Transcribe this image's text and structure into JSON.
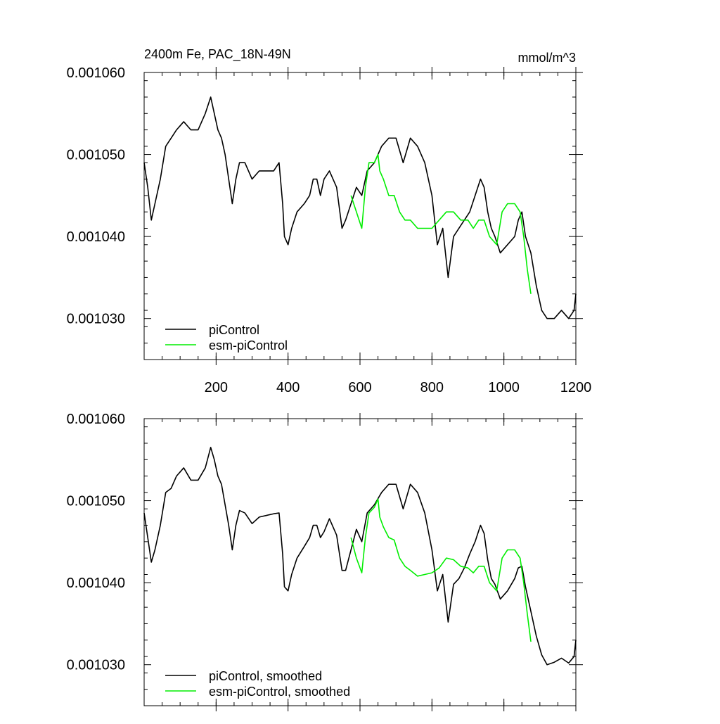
{
  "chart_data": [
    {
      "type": "line",
      "title": "2400m Fe, PAC_18N-49N",
      "units": "mmol/m^3",
      "xlim": [
        0,
        1200
      ],
      "ylim": [
        0.001025,
        0.00106
      ],
      "xticks": [
        200,
        400,
        600,
        800,
        1000,
        1200
      ],
      "xtick_labels": [
        "200",
        "400",
        "600",
        "800",
        "1000",
        "1200"
      ],
      "yticks": [
        0.00103,
        0.00104,
        0.00105,
        0.00106
      ],
      "ytick_labels": [
        "0.001030",
        "0.001040",
        "0.001050",
        "0.001060"
      ],
      "legend_position": "bottom-left",
      "series": [
        {
          "name": "piControl",
          "color": "#000000",
          "x": [
            0,
            10,
            20,
            30,
            45,
            60,
            75,
            90,
            110,
            130,
            150,
            170,
            185,
            195,
            205,
            215,
            225,
            235,
            245,
            255,
            265,
            280,
            300,
            320,
            340,
            360,
            375,
            385,
            390,
            400,
            410,
            425,
            445,
            460,
            470,
            480,
            490,
            500,
            515,
            535,
            550,
            560,
            575,
            590,
            605,
            620,
            640,
            660,
            680,
            700,
            720,
            740,
            760,
            780,
            800,
            815,
            830,
            845,
            860,
            875,
            890,
            905,
            920,
            935,
            945,
            955,
            965,
            975,
            990,
            1010,
            1030,
            1040,
            1050,
            1060,
            1075,
            1090,
            1105,
            1120,
            1140,
            1160,
            1180,
            1195,
            1200
          ],
          "values": [
            0.001049,
            0.001046,
            0.001042,
            0.001044,
            0.001047,
            0.001051,
            0.001052,
            0.001053,
            0.001054,
            0.001053,
            0.001053,
            0.001055,
            0.001057,
            0.001055,
            0.001053,
            0.001052,
            0.00105,
            0.001047,
            0.001044,
            0.001047,
            0.001049,
            0.001049,
            0.001047,
            0.001048,
            0.001048,
            0.001048,
            0.001049,
            0.001044,
            0.00104,
            0.001039,
            0.001041,
            0.001043,
            0.001044,
            0.001045,
            0.001047,
            0.001047,
            0.001045,
            0.001047,
            0.001048,
            0.001046,
            0.001041,
            0.001042,
            0.001044,
            0.001046,
            0.001045,
            0.001048,
            0.001049,
            0.001051,
            0.001052,
            0.001052,
            0.001049,
            0.001052,
            0.001051,
            0.001049,
            0.001045,
            0.001039,
            0.001041,
            0.001035,
            0.00104,
            0.001041,
            0.001042,
            0.001043,
            0.001045,
            0.001047,
            0.001046,
            0.001043,
            0.001041,
            0.00104,
            0.001038,
            0.001039,
            0.00104,
            0.001042,
            0.001043,
            0.00104,
            0.001038,
            0.001034,
            0.001031,
            0.00103,
            0.00103,
            0.001031,
            0.00103,
            0.001031,
            0.001033
          ]
        },
        {
          "name": "esm-piControl",
          "color": "#00ee00",
          "x": [
            575,
            590,
            605,
            615,
            625,
            640,
            650,
            655,
            665,
            680,
            695,
            710,
            725,
            740,
            760,
            780,
            800,
            820,
            840,
            860,
            880,
            900,
            915,
            930,
            945,
            960,
            980,
            995,
            1010,
            1030,
            1045,
            1055,
            1065,
            1075
          ],
          "values": [
            0.001045,
            0.001043,
            0.001041,
            0.001046,
            0.001049,
            0.001049,
            0.00105,
            0.001048,
            0.001047,
            0.001045,
            0.001045,
            0.001043,
            0.001042,
            0.001042,
            0.001041,
            0.001041,
            0.001041,
            0.001042,
            0.001043,
            0.001043,
            0.001042,
            0.001042,
            0.001041,
            0.001042,
            0.001042,
            0.00104,
            0.001039,
            0.001043,
            0.001044,
            0.001044,
            0.001043,
            0.00104,
            0.001036,
            0.001033
          ]
        }
      ]
    },
    {
      "type": "line",
      "title": "",
      "units": "",
      "xlim": [
        0,
        1200
      ],
      "ylim": [
        0.001025,
        0.00106
      ],
      "xticks": [
        200,
        400,
        600,
        800,
        1000,
        1200
      ],
      "xtick_labels": [
        "",
        "",
        "",
        "",
        "",
        ""
      ],
      "yticks": [
        0.00103,
        0.00104,
        0.00105,
        0.00106
      ],
      "ytick_labels": [
        "0.001030",
        "0.001040",
        "0.001050",
        "0.001060"
      ],
      "legend_position": "bottom-left",
      "series": [
        {
          "name": "piControl, smoothed",
          "color": "#000000",
          "x": [
            0,
            10,
            20,
            30,
            45,
            60,
            75,
            90,
            110,
            130,
            150,
            170,
            185,
            195,
            205,
            215,
            225,
            235,
            245,
            255,
            265,
            280,
            300,
            320,
            340,
            360,
            375,
            385,
            390,
            400,
            410,
            425,
            445,
            460,
            470,
            480,
            490,
            500,
            515,
            535,
            550,
            560,
            575,
            590,
            605,
            620,
            640,
            660,
            680,
            700,
            720,
            740,
            760,
            780,
            800,
            815,
            830,
            845,
            860,
            875,
            890,
            905,
            920,
            935,
            945,
            955,
            965,
            975,
            990,
            1010,
            1030,
            1040,
            1050,
            1060,
            1075,
            1090,
            1105,
            1120,
            1140,
            1160,
            1180,
            1195,
            1200
          ],
          "values": [
            0.0010485,
            0.0010455,
            0.0010425,
            0.001044,
            0.001047,
            0.001051,
            0.0010515,
            0.001053,
            0.001054,
            0.0010525,
            0.0010525,
            0.001054,
            0.0010565,
            0.001055,
            0.001053,
            0.001052,
            0.0010495,
            0.001047,
            0.001044,
            0.001047,
            0.0010488,
            0.0010485,
            0.0010472,
            0.001048,
            0.0010482,
            0.0010484,
            0.0010485,
            0.0010435,
            0.0010395,
            0.001039,
            0.001041,
            0.001043,
            0.0010444,
            0.0010455,
            0.001047,
            0.001047,
            0.0010455,
            0.0010462,
            0.0010478,
            0.0010458,
            0.0010415,
            0.0010415,
            0.001044,
            0.0010465,
            0.001045,
            0.0010485,
            0.0010495,
            0.001051,
            0.001052,
            0.001052,
            0.001049,
            0.001052,
            0.001051,
            0.0010485,
            0.001044,
            0.001039,
            0.001041,
            0.0010352,
            0.0010398,
            0.0010405,
            0.0010418,
            0.0010435,
            0.001045,
            0.001047,
            0.001046,
            0.0010428,
            0.0010405,
            0.0010398,
            0.001038,
            0.001039,
            0.0010405,
            0.0010418,
            0.001042,
            0.0010395,
            0.0010365,
            0.0010335,
            0.0010312,
            0.00103,
            0.0010303,
            0.0010308,
            0.0010302,
            0.001031,
            0.001033
          ]
        },
        {
          "name": "esm-piControl, smoothed",
          "color": "#00ee00",
          "x": [
            575,
            590,
            605,
            615,
            625,
            640,
            650,
            655,
            665,
            680,
            695,
            710,
            725,
            740,
            760,
            780,
            800,
            820,
            840,
            860,
            880,
            900,
            915,
            930,
            945,
            960,
            980,
            995,
            1010,
            1030,
            1045,
            1055,
            1065,
            1075
          ],
          "values": [
            0.0010455,
            0.001043,
            0.0010412,
            0.0010455,
            0.0010485,
            0.0010492,
            0.0010502,
            0.001048,
            0.0010468,
            0.0010455,
            0.0010452,
            0.001043,
            0.001042,
            0.0010415,
            0.0010408,
            0.001041,
            0.0010412,
            0.0010418,
            0.001043,
            0.0010428,
            0.001042,
            0.0010418,
            0.0010412,
            0.001042,
            0.001042,
            0.00104,
            0.001039,
            0.001043,
            0.001044,
            0.001044,
            0.001043,
            0.00104,
            0.0010362,
            0.0010328
          ]
        }
      ]
    }
  ]
}
